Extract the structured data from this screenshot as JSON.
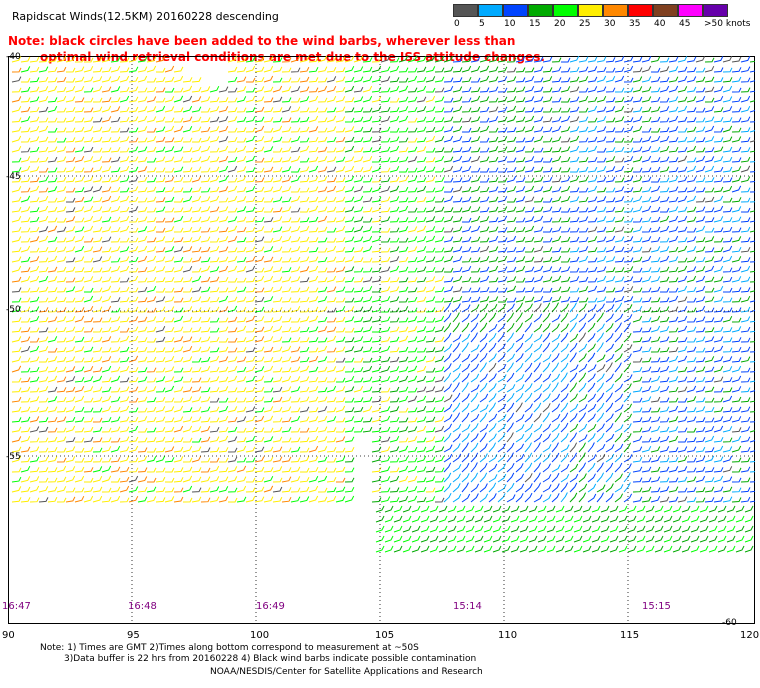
{
  "title": "Rapidscat Winds(12.5KM) 20160228 descending",
  "note_line1": "Note: black circles have been added to the wind barbs, wherever less than",
  "note_line2": "optimal wind retrieval conditions are met due to the ISS attitude changes.",
  "color_scale": [
    {
      "label": "0",
      "color": "#555555"
    },
    {
      "label": "5",
      "color": "#00aaff"
    },
    {
      "label": "10",
      "color": "#0044ff"
    },
    {
      "label": "15",
      "color": "#00aa00"
    },
    {
      "label": "20",
      "color": "#00ff00"
    },
    {
      "label": "25",
      "color": "#ffee00"
    },
    {
      "label": "30",
      "color": "#ff8800"
    },
    {
      "label": "35",
      "color": "#ff0000"
    },
    {
      "label": "40",
      "color": "#804020"
    },
    {
      "label": "45",
      "color": "#ff00ff"
    },
    {
      "label": ">50 knots",
      "color": "#6600aa"
    }
  ],
  "lat_labels": [
    "-40",
    "-45",
    "-50",
    "-55",
    "-60"
  ],
  "lon_labels": [
    "90",
    "95",
    "100",
    "105",
    "110",
    "115",
    "120"
  ],
  "time_labels": [
    "16:47",
    "16:48",
    "16:49",
    "15:14",
    "15:15"
  ],
  "footer_line1": "Note: 1) Times are GMT 2)Times along bottom correspond to measurement at ~50S",
  "footer_line2": "3)Data buffer is 22 hrs from 20160228 4) Black wind barbs indicate possible contamination",
  "footer_line3": "NOAA/NESDIS/Center for Satellite Applications and Research"
}
